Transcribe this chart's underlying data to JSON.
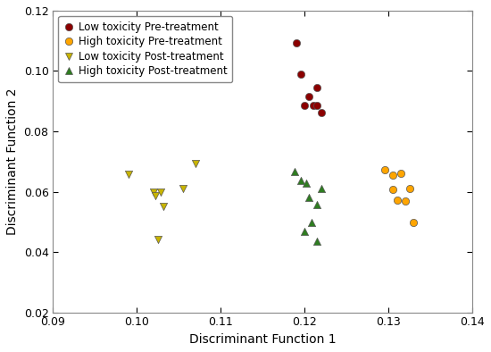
{
  "low_tox_pre": {
    "x": [
      0.119,
      0.1195,
      0.1205,
      0.12,
      0.1215,
      0.121,
      0.1215,
      0.122
    ],
    "y": [
      0.1093,
      0.099,
      0.0915,
      0.0887,
      0.0945,
      0.0885,
      0.0885,
      0.0862
    ],
    "color": "#8B0000",
    "marker": "o",
    "label": "Low toxicity Pre-treatment",
    "size": 35
  },
  "high_tox_pre": {
    "x": [
      0.1295,
      0.1305,
      0.1305,
      0.1315,
      0.131,
      0.132,
      0.1325,
      0.133
    ],
    "y": [
      0.0672,
      0.0608,
      0.0655,
      0.0662,
      0.0572,
      0.0568,
      0.0612,
      0.0498
    ],
    "color": "#FFA500",
    "marker": "o",
    "label": "High toxicity Pre-treatment",
    "size": 35
  },
  "low_tox_post": {
    "x": [
      0.099,
      0.102,
      0.1022,
      0.1028,
      0.1032,
      0.1055,
      0.107,
      0.1025
    ],
    "y": [
      0.0658,
      0.0598,
      0.0588,
      0.06,
      0.0551,
      0.0612,
      0.0692,
      0.0442
    ],
    "color": "#C8B400",
    "marker": "v",
    "label": "Low toxicity Post-treatment",
    "size": 35
  },
  "high_tox_post": {
    "x": [
      0.1188,
      0.1195,
      0.1202,
      0.1205,
      0.1215,
      0.1208,
      0.12,
      0.1215,
      0.122
    ],
    "y": [
      0.0668,
      0.0638,
      0.0628,
      0.0582,
      0.0558,
      0.0498,
      0.0468,
      0.0435,
      0.061
    ],
    "color": "#2E7D20",
    "marker": "^",
    "label": "High toxicity Post-treatment",
    "size": 35
  },
  "xlabel": "Discriminant Function 1",
  "ylabel": "Discriminant Function 2",
  "xlim": [
    0.09,
    0.14
  ],
  "ylim": [
    0.02,
    0.12
  ],
  "xticks": [
    0.09,
    0.1,
    0.11,
    0.12,
    0.13,
    0.14
  ],
  "yticks": [
    0.02,
    0.04,
    0.06,
    0.08,
    0.1,
    0.12
  ],
  "figsize": [
    5.5,
    3.94
  ],
  "dpi": 100,
  "bg_color": "#ffffff",
  "legend_fontsize": 8.5,
  "axis_fontsize": 10
}
